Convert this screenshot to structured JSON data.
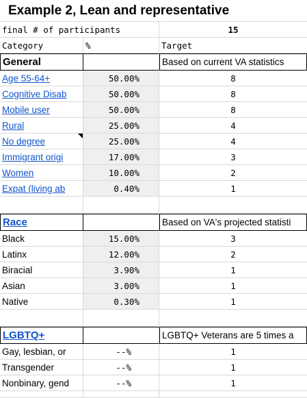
{
  "title": "Example 2, Lean and representative",
  "participants": {
    "label": "final # of participants",
    "value": "15"
  },
  "headers": {
    "category": "Category",
    "percent": "%",
    "target": "Target"
  },
  "general": {
    "heading": "General",
    "note": "Based on current VA statistics",
    "rows": [
      {
        "name": "Age 55-64+",
        "pct": "50.00%",
        "target": "8"
      },
      {
        "name": "Cognitive Disab",
        "pct": "50.00%",
        "target": "8"
      },
      {
        "name": "Mobile user",
        "pct": "50.00%",
        "target": "8"
      },
      {
        "name": "Rural",
        "pct": "25.00%",
        "target": "4"
      },
      {
        "name": "No degree",
        "pct": "25.00%",
        "target": "4"
      },
      {
        "name": "Immigrant origi",
        "pct": "17.00%",
        "target": "3"
      },
      {
        "name": "Women",
        "pct": "10.00%",
        "target": "2"
      },
      {
        "name": "Expat (living ab",
        "pct": "0.40%",
        "target": "1"
      }
    ]
  },
  "race": {
    "heading": "Race",
    "note": "Based on VA's projected statisti",
    "rows": [
      {
        "name": "Black",
        "pct": "15.00%",
        "target": "3"
      },
      {
        "name": "Latinx",
        "pct": "12.00%",
        "target": "2"
      },
      {
        "name": "Biracial",
        "pct": "3.90%",
        "target": "1"
      },
      {
        "name": "Asian",
        "pct": "3.00%",
        "target": "1"
      },
      {
        "name": "Native",
        "pct": "0.30%",
        "target": "1"
      }
    ]
  },
  "lgbtq": {
    "heading": "LGBTQ+",
    "note": "LGBTQ+ Veterans are 5 times a",
    "rows": [
      {
        "name": "Gay, lesbian, or",
        "pct": "--%",
        "target": "1"
      },
      {
        "name": "Transgender",
        "pct": "--%",
        "target": "1"
      },
      {
        "name": "Nonbinary, gend",
        "pct": "--%",
        "target": "1"
      }
    ]
  }
}
